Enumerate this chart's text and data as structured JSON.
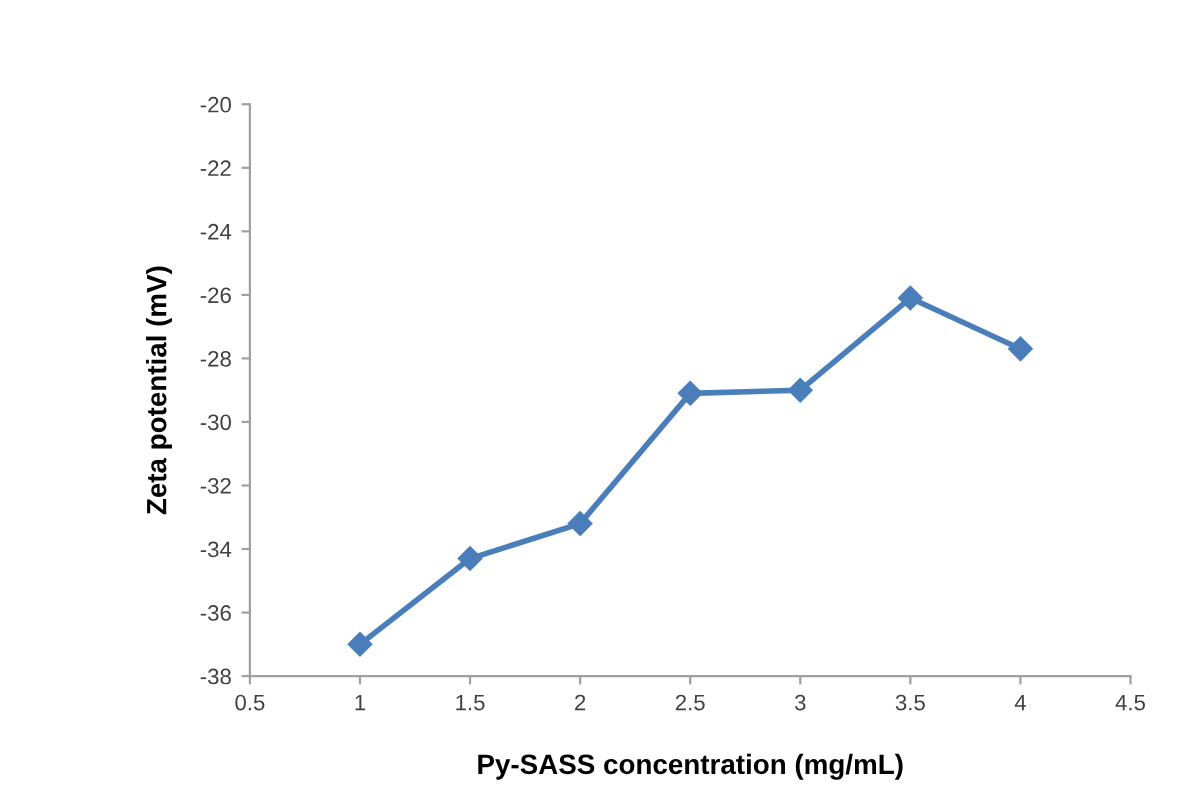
{
  "chart_data": {
    "type": "line",
    "xlabel": "Py-SASS concentration (mg/mL)",
    "ylabel": "Zeta potential (mV)",
    "x": [
      1,
      1.5,
      2,
      2.5,
      3,
      3.5,
      4
    ],
    "series": [
      {
        "color": "#4a7ebb",
        "values": [
          -37.0,
          -34.3,
          -33.2,
          -29.1,
          -29.0,
          -26.1,
          -27.7
        ]
      }
    ],
    "xlim": [
      0.5,
      4.5
    ],
    "xticks": [
      0.5,
      1,
      1.5,
      2,
      2.5,
      3,
      3.5,
      4,
      4.5
    ],
    "ylim": [
      -38,
      -20
    ],
    "yticks": [
      -38,
      -36,
      -34,
      -32,
      -30,
      -28,
      -26,
      -24,
      -22,
      -20
    ],
    "grid": false,
    "marker": "diamond",
    "line_style": "solid"
  }
}
